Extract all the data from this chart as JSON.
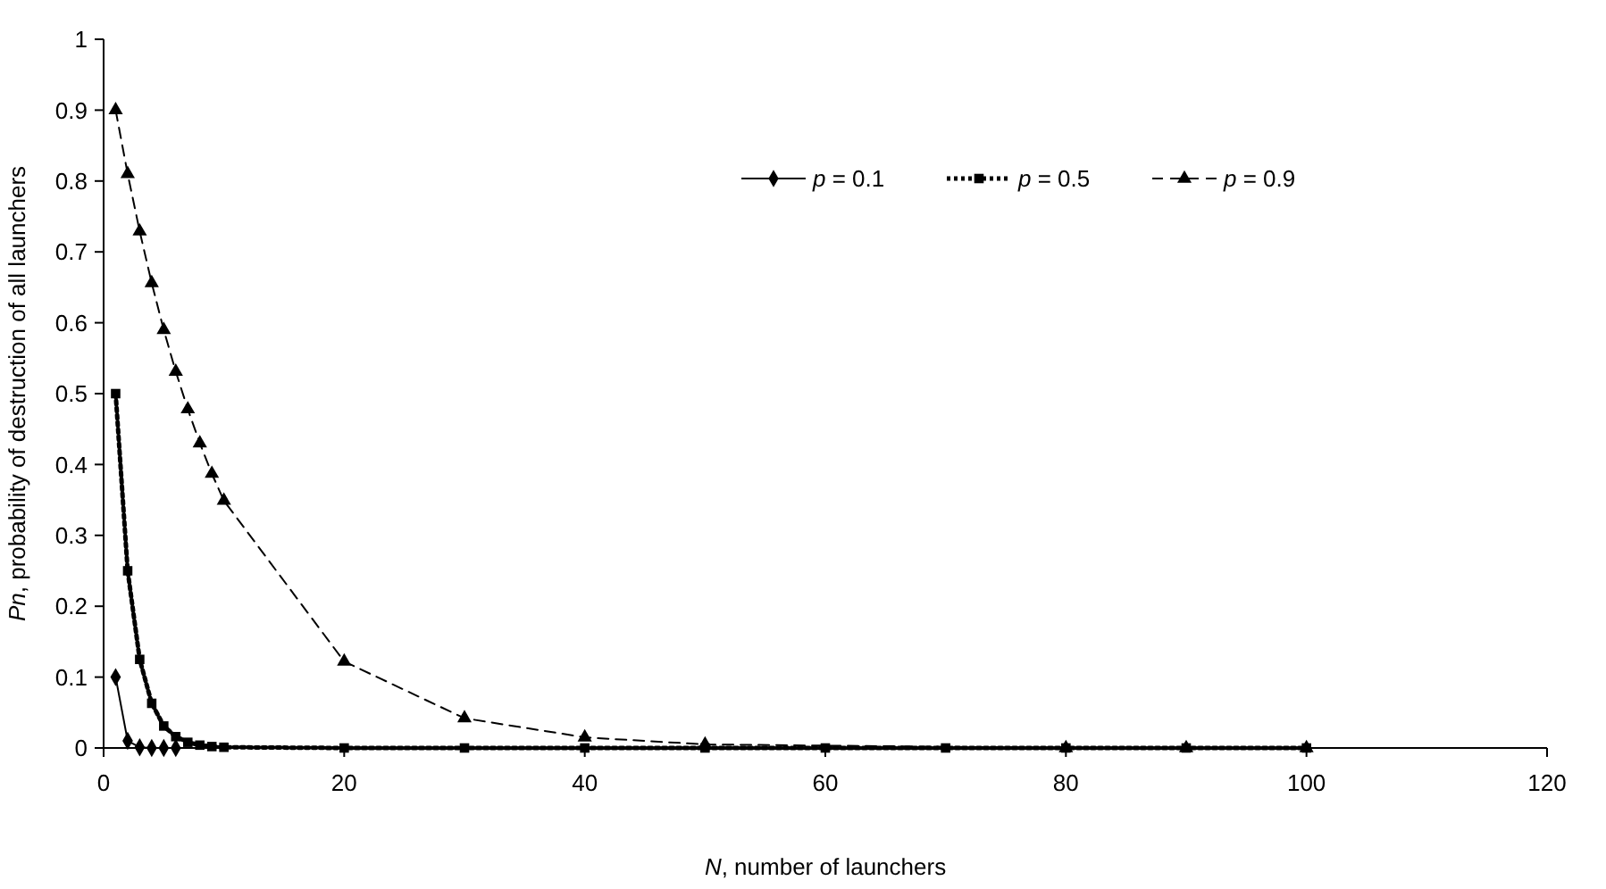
{
  "chart_data": {
    "type": "line",
    "xlabel": "N, number of launchers",
    "ylabel": "Pn, probability of destruction of all launchers",
    "x": [
      1,
      2,
      3,
      4,
      5,
      6,
      7,
      8,
      9,
      10,
      20,
      30,
      40,
      50,
      60,
      70,
      80,
      90,
      100
    ],
    "xlim": [
      0,
      120
    ],
    "xticks": [
      0,
      20,
      40,
      60,
      80,
      100,
      120
    ],
    "ylim": [
      0,
      1
    ],
    "yticks": [
      0,
      0.1,
      0.2,
      0.3,
      0.4,
      0.5,
      0.6,
      0.7,
      0.8,
      0.9,
      1
    ],
    "grid": false,
    "legend": "top right",
    "series": [
      {
        "name": "p = 0.1",
        "color": "#000000",
        "marker": "diamond",
        "line_style": "solid",
        "values": [
          0.1,
          0.01,
          0.001,
          0,
          0,
          0,
          null,
          null,
          null,
          null,
          null,
          null,
          null,
          null,
          null,
          null,
          null,
          null,
          null
        ]
      },
      {
        "name": "p = 0.5",
        "color": "#000000",
        "marker": "square",
        "line_style": "dotted",
        "values": [
          0.5,
          0.25,
          0.125,
          0.063,
          0.031,
          0.016,
          0.008,
          0.004,
          0.002,
          0.001,
          0,
          0,
          0,
          0,
          0,
          0,
          0,
          0,
          0
        ]
      },
      {
        "name": "p = 0.9",
        "color": "#000000",
        "marker": "triangle",
        "line_style": "dashed",
        "values": [
          0.9,
          0.81,
          0.729,
          0.656,
          0.59,
          0.531,
          0.478,
          0.43,
          0.387,
          0.349,
          0.122,
          0.042,
          0.015,
          0.005,
          null,
          null,
          0,
          0,
          0
        ]
      }
    ]
  }
}
